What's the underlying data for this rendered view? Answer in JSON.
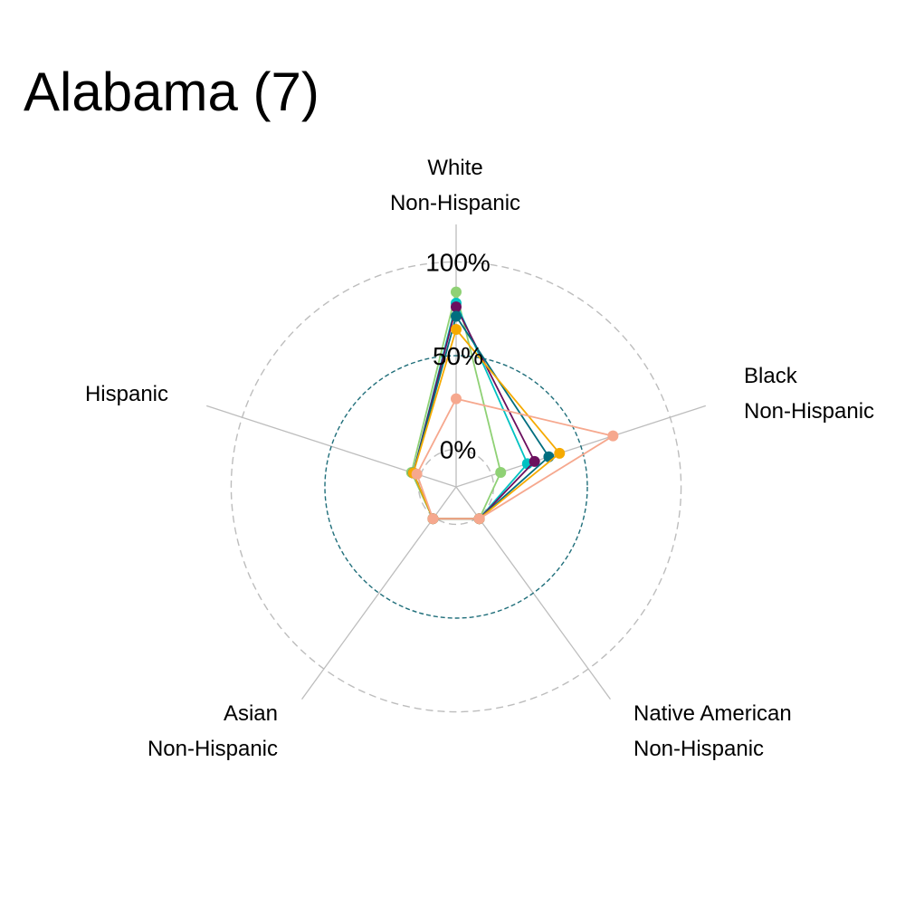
{
  "chart_data": {
    "type": "radar",
    "title": "Alabama (7)",
    "axes": [
      {
        "id": "white",
        "lines": [
          "White",
          "Non-Hispanic"
        ]
      },
      {
        "id": "black",
        "lines": [
          "Black",
          "Non-Hispanic"
        ]
      },
      {
        "id": "native",
        "lines": [
          "Native American",
          "Non-Hispanic"
        ]
      },
      {
        "id": "asian",
        "lines": [
          "Asian",
          "Non-Hispanic"
        ]
      },
      {
        "id": "hispanic",
        "lines": [
          "Hispanic"
        ]
      }
    ],
    "grid_labels": [
      "0%",
      "50%",
      "100%"
    ],
    "grid_values": [
      0,
      50,
      100
    ],
    "range": [
      -20,
      120
    ],
    "legend": "none",
    "series": [
      {
        "color": "#8fd175",
        "values": [
          84,
          5,
          1,
          1,
          5
        ]
      },
      {
        "color": "#00c2c2",
        "values": [
          78,
          20,
          1,
          1,
          4
        ]
      },
      {
        "color": "#6b0f5e",
        "values": [
          76,
          24,
          1,
          1,
          4
        ]
      },
      {
        "color": "#006e7f",
        "values": [
          71,
          32,
          1,
          1,
          4
        ]
      },
      {
        "color": "#f5aa00",
        "values": [
          64,
          38,
          1,
          1,
          4
        ]
      },
      {
        "color": "#f6a88e",
        "values": [
          27,
          68,
          1,
          1,
          2
        ]
      }
    ]
  }
}
